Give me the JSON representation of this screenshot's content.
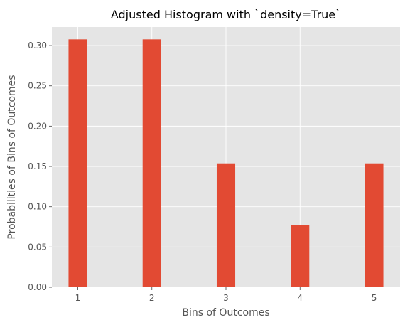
{
  "chart_data": {
    "type": "bar",
    "title": "Adjusted Histogram with `density=True`",
    "xlabel": "Bins of Outcomes",
    "ylabel": "Probabilities of Bins of Outcomes",
    "categories": [
      "1",
      "2",
      "3",
      "4",
      "5"
    ],
    "x": [
      1,
      2,
      3,
      4,
      5
    ],
    "values": [
      0.3077,
      0.3077,
      0.1538,
      0.0769,
      0.1538
    ],
    "xlim": [
      0.65,
      5.35
    ],
    "ylim": [
      0,
      0.323
    ],
    "yticks": [
      0.0,
      0.05,
      0.1,
      0.15,
      0.2,
      0.25,
      0.3
    ],
    "ytick_labels": [
      "0.00",
      "0.05",
      "0.10",
      "0.15",
      "0.20",
      "0.25",
      "0.30"
    ],
    "bar_width": 0.25,
    "grid": true,
    "style": "ggplot",
    "colors": {
      "bar": "#E24A33",
      "plot_background": "#E5E5E5",
      "grid": "#FFFFFF",
      "tick_text": "#555555",
      "title_text": "#000000"
    }
  }
}
